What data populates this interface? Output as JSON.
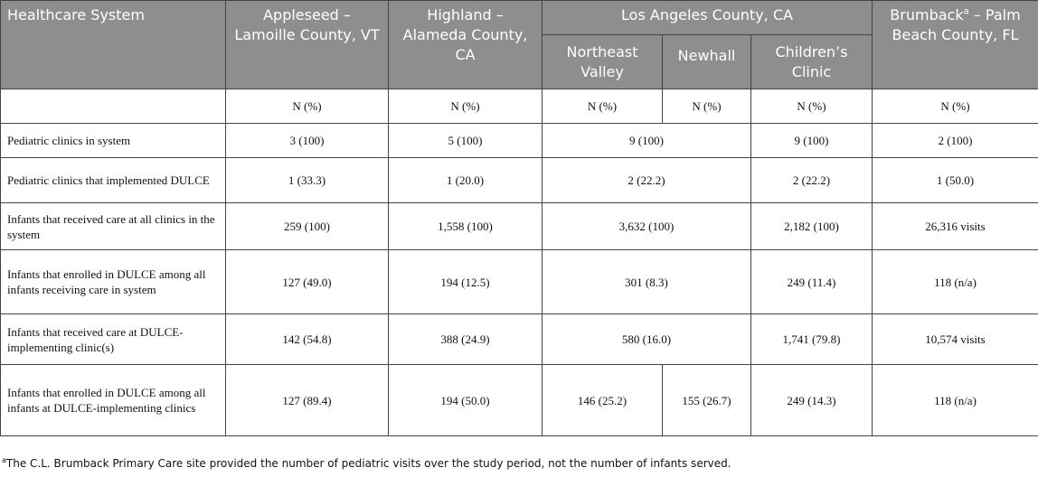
{
  "header": {
    "system_label": "Healthcare System",
    "appleseed": "Appleseed – Lamoille County, VT",
    "highland": "Highland – Alameda County, CA",
    "la_county": "Los Angeles County, CA",
    "northeast_valley": "Northeast Valley",
    "newhall": "Newhall",
    "childrens_clinic": "Children’s Clinic",
    "brumback_prefix": "Brumback",
    "brumback_sup": "a",
    "brumback_suffix": " – Palm Beach County, FL",
    "n_pct": "N (%)"
  },
  "rows": [
    {
      "label": "Pediatric clinics in system",
      "appleseed": "3 (100)",
      "highland": "5 (100)",
      "la": "9 (100)",
      "childrens": "9 (100)",
      "brumback": "2 (100)"
    },
    {
      "label": "Pediatric clinics that implemented DULCE",
      "appleseed": "1 (33.3)",
      "highland": "1 (20.0)",
      "la": "2 (22.2)",
      "childrens": "2 (22.2)",
      "brumback": "1 (50.0)"
    },
    {
      "label": "Infants that received care at all clinics in the system",
      "appleseed": "259 (100)",
      "highland": "1,558 (100)",
      "la": "3,632 (100)",
      "childrens": "2,182 (100)",
      "brumback": "26,316 visits"
    },
    {
      "label": "Infants that enrolled in DULCE among all infants receiving care in system",
      "appleseed": "127 (49.0)",
      "highland": "194 (12.5)",
      "la": "301 (8.3)",
      "childrens": "249 (11.4)",
      "brumback": "118 (n/a)"
    },
    {
      "label": "Infants that received care at DULCE-implementing clinic(s)",
      "appleseed": "142 (54.8)",
      "highland": "388 (24.9)",
      "la": "580 (16.0)",
      "childrens": "1,741 (79.8)",
      "brumback": "10,574 visits"
    },
    {
      "label": "Infants that enrolled in DULCE among all infants at DULCE-implementing clinics",
      "appleseed": "127 (89.4)",
      "highland": "194 (50.0)",
      "northeast": "146 (25.2)",
      "newhall": "155 (26.7)",
      "childrens": "249 (14.3)",
      "brumback": "118 (n/a)"
    }
  ],
  "footnote": {
    "marker": "a",
    "text": "The C.L. Brumback Primary Care site provided the number of pediatric visits over the study period, not the number of infants served."
  }
}
